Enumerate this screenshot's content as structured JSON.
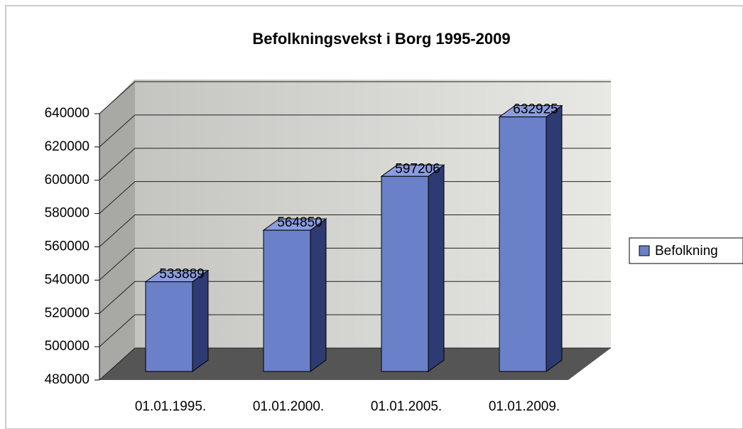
{
  "chart_data": {
    "type": "bar",
    "title": "Befolkningsvekst i Borg 1995-2009",
    "categories": [
      "01.01.1995.",
      "01.01.2000.",
      "01.01.2005.",
      "01.01.2009."
    ],
    "series": [
      {
        "name": "Befolkning",
        "color": "#6a80c8",
        "values": [
          533889,
          564850,
          597206,
          632925
        ]
      }
    ],
    "ylim": [
      480000,
      640000
    ],
    "yticks": [
      480000,
      500000,
      520000,
      540000,
      560000,
      580000,
      600000,
      620000,
      640000
    ],
    "grid": true,
    "legend": "right"
  }
}
